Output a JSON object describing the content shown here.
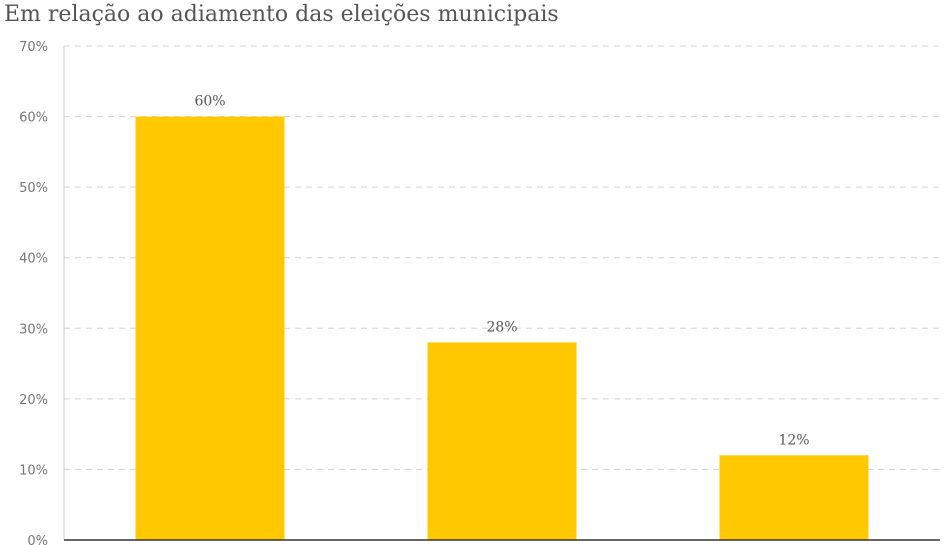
{
  "chart_data": {
    "type": "bar",
    "title": "Em relação ao adiamento das eleições municipais",
    "categories": [
      "",
      "",
      ""
    ],
    "values": [
      60,
      28,
      12
    ],
    "value_labels": [
      "60%",
      "28%",
      "12%"
    ],
    "ylim": [
      0,
      70
    ],
    "y_ticks": [
      0,
      10,
      20,
      30,
      40,
      50,
      60,
      70
    ],
    "y_tick_labels": [
      "0%",
      "10%",
      "20%",
      "30%",
      "40%",
      "50%",
      "60%",
      "70%"
    ],
    "bar_color": "#ffc800",
    "grid": true,
    "grid_style": "dashed",
    "legend": "none"
  }
}
